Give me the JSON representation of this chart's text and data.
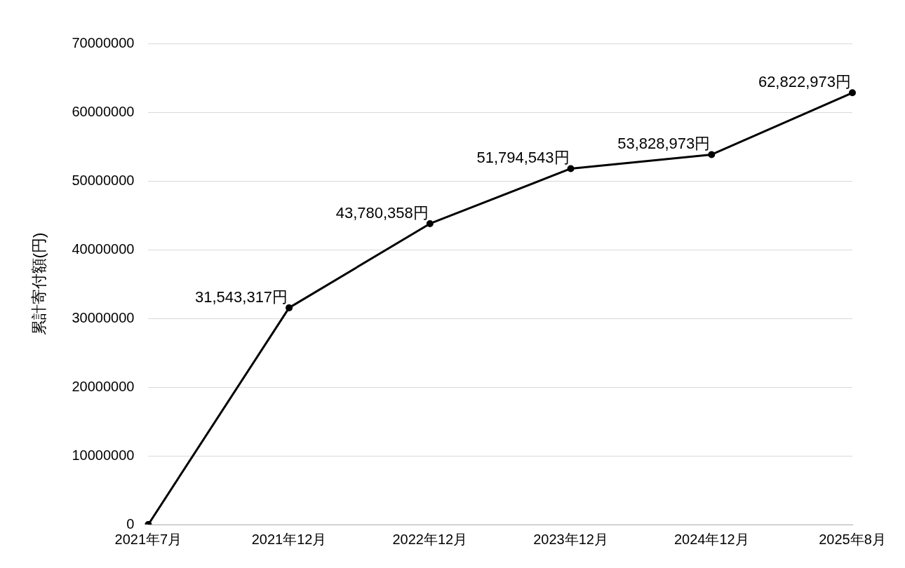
{
  "chart_data": {
    "type": "line",
    "ylabel": "累計寄付額(円)",
    "categories": [
      "2021年7月",
      "2021年12月",
      "2022年12月",
      "2023年12月",
      "2024年12月",
      "2025年8月"
    ],
    "series": [
      {
        "color": "#000000",
        "values": [
          0,
          31543317,
          43780358,
          51794543,
          53828973,
          62822973
        ],
        "value_labels": [
          null,
          "31,543,317円",
          "43,780,358円",
          "51,794,543円",
          "53,828,973円",
          "62,822,973円"
        ]
      }
    ],
    "ylim": [
      0,
      70000000
    ],
    "yticks": [
      0,
      10000000,
      20000000,
      30000000,
      40000000,
      50000000,
      60000000,
      70000000
    ],
    "grid": "y",
    "legend": false,
    "marker": "circle",
    "line_style": "solid"
  }
}
